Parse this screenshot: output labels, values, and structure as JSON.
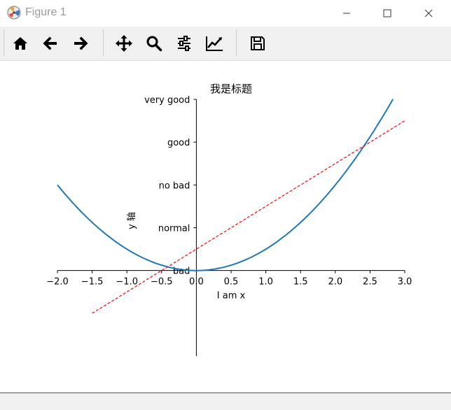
{
  "window": {
    "title": "Figure 1"
  },
  "toolbar": {
    "buttons": [
      {
        "name": "home",
        "icon": "home-icon"
      },
      {
        "name": "back",
        "icon": "arrow-left-icon"
      },
      {
        "name": "forward",
        "icon": "arrow-right-icon"
      },
      {
        "name": "pan",
        "icon": "move-icon"
      },
      {
        "name": "zoom",
        "icon": "magnifier-icon"
      },
      {
        "name": "configure-subplots",
        "icon": "sliders-icon"
      },
      {
        "name": "edit-axes",
        "icon": "line-chart-icon"
      },
      {
        "name": "save",
        "icon": "floppy-disk-icon"
      }
    ]
  },
  "statusbar": {
    "text": ""
  },
  "chart_data": {
    "type": "line",
    "title": "我是标题",
    "xlabel": "I am x",
    "ylabel": "y 轴",
    "xlim": [
      -2.0,
      3.0
    ],
    "ylim": [
      -1,
      2
    ],
    "xticks": [
      "−2.0",
      "−1.5",
      "−1.0",
      "−0.5",
      "0.0",
      "0.5",
      "1.0",
      "1.5",
      "2.0",
      "2.5",
      "3.0"
    ],
    "xtick_values": [
      -2.0,
      -1.5,
      -1.0,
      -0.5,
      0.0,
      0.5,
      1.0,
      1.5,
      2.0,
      2.5,
      3.0
    ],
    "yticks": [
      "bad",
      "normal",
      "no bad",
      "good",
      "very good"
    ],
    "ytick_values": [
      0,
      0.5,
      1.0,
      1.5,
      2.0
    ],
    "grid": false,
    "series": [
      {
        "color": "#1f77b4",
        "style": "solid",
        "function": "y = x^2 / 4",
        "x": [
          -2.0,
          -1.5,
          -1.0,
          -0.5,
          0.0,
          0.5,
          1.0,
          1.5,
          2.0,
          2.5,
          2.83
        ],
        "y": [
          1.0,
          0.5625,
          0.25,
          0.0625,
          0.0,
          0.0625,
          0.25,
          0.5625,
          1.0,
          1.5625,
          2.0
        ]
      },
      {
        "color": "#ff0000",
        "style": "dashed",
        "function": "y = 0.5x + 0.25",
        "x": [
          -1.5,
          3.0
        ],
        "y": [
          -0.5,
          1.75
        ]
      }
    ]
  }
}
